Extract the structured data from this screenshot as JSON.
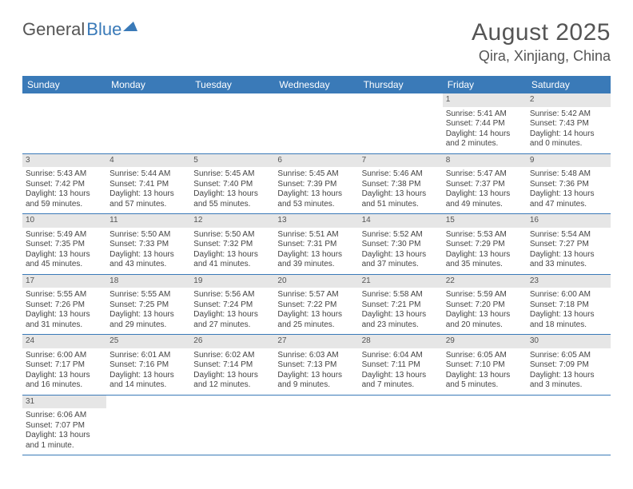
{
  "brand": {
    "part1": "General",
    "part2": "Blue"
  },
  "title": "August 2025",
  "location": "Qira, Xinjiang, China",
  "colors": {
    "header_bg": "#3a7ab8",
    "header_text": "#ffffff",
    "daynum_bg": "#e6e6e6",
    "rule": "#3a7ab8",
    "text": "#444444",
    "title_text": "#555555"
  },
  "dayHeaders": [
    "Sunday",
    "Monday",
    "Tuesday",
    "Wednesday",
    "Thursday",
    "Friday",
    "Saturday"
  ],
  "weeks": [
    [
      null,
      null,
      null,
      null,
      null,
      {
        "n": "1",
        "sr": "Sunrise: 5:41 AM",
        "ss": "Sunset: 7:44 PM",
        "dl": "Daylight: 14 hours and 2 minutes."
      },
      {
        "n": "2",
        "sr": "Sunrise: 5:42 AM",
        "ss": "Sunset: 7:43 PM",
        "dl": "Daylight: 14 hours and 0 minutes."
      }
    ],
    [
      {
        "n": "3",
        "sr": "Sunrise: 5:43 AM",
        "ss": "Sunset: 7:42 PM",
        "dl": "Daylight: 13 hours and 59 minutes."
      },
      {
        "n": "4",
        "sr": "Sunrise: 5:44 AM",
        "ss": "Sunset: 7:41 PM",
        "dl": "Daylight: 13 hours and 57 minutes."
      },
      {
        "n": "5",
        "sr": "Sunrise: 5:45 AM",
        "ss": "Sunset: 7:40 PM",
        "dl": "Daylight: 13 hours and 55 minutes."
      },
      {
        "n": "6",
        "sr": "Sunrise: 5:45 AM",
        "ss": "Sunset: 7:39 PM",
        "dl": "Daylight: 13 hours and 53 minutes."
      },
      {
        "n": "7",
        "sr": "Sunrise: 5:46 AM",
        "ss": "Sunset: 7:38 PM",
        "dl": "Daylight: 13 hours and 51 minutes."
      },
      {
        "n": "8",
        "sr": "Sunrise: 5:47 AM",
        "ss": "Sunset: 7:37 PM",
        "dl": "Daylight: 13 hours and 49 minutes."
      },
      {
        "n": "9",
        "sr": "Sunrise: 5:48 AM",
        "ss": "Sunset: 7:36 PM",
        "dl": "Daylight: 13 hours and 47 minutes."
      }
    ],
    [
      {
        "n": "10",
        "sr": "Sunrise: 5:49 AM",
        "ss": "Sunset: 7:35 PM",
        "dl": "Daylight: 13 hours and 45 minutes."
      },
      {
        "n": "11",
        "sr": "Sunrise: 5:50 AM",
        "ss": "Sunset: 7:33 PM",
        "dl": "Daylight: 13 hours and 43 minutes."
      },
      {
        "n": "12",
        "sr": "Sunrise: 5:50 AM",
        "ss": "Sunset: 7:32 PM",
        "dl": "Daylight: 13 hours and 41 minutes."
      },
      {
        "n": "13",
        "sr": "Sunrise: 5:51 AM",
        "ss": "Sunset: 7:31 PM",
        "dl": "Daylight: 13 hours and 39 minutes."
      },
      {
        "n": "14",
        "sr": "Sunrise: 5:52 AM",
        "ss": "Sunset: 7:30 PM",
        "dl": "Daylight: 13 hours and 37 minutes."
      },
      {
        "n": "15",
        "sr": "Sunrise: 5:53 AM",
        "ss": "Sunset: 7:29 PM",
        "dl": "Daylight: 13 hours and 35 minutes."
      },
      {
        "n": "16",
        "sr": "Sunrise: 5:54 AM",
        "ss": "Sunset: 7:27 PM",
        "dl": "Daylight: 13 hours and 33 minutes."
      }
    ],
    [
      {
        "n": "17",
        "sr": "Sunrise: 5:55 AM",
        "ss": "Sunset: 7:26 PM",
        "dl": "Daylight: 13 hours and 31 minutes."
      },
      {
        "n": "18",
        "sr": "Sunrise: 5:55 AM",
        "ss": "Sunset: 7:25 PM",
        "dl": "Daylight: 13 hours and 29 minutes."
      },
      {
        "n": "19",
        "sr": "Sunrise: 5:56 AM",
        "ss": "Sunset: 7:24 PM",
        "dl": "Daylight: 13 hours and 27 minutes."
      },
      {
        "n": "20",
        "sr": "Sunrise: 5:57 AM",
        "ss": "Sunset: 7:22 PM",
        "dl": "Daylight: 13 hours and 25 minutes."
      },
      {
        "n": "21",
        "sr": "Sunrise: 5:58 AM",
        "ss": "Sunset: 7:21 PM",
        "dl": "Daylight: 13 hours and 23 minutes."
      },
      {
        "n": "22",
        "sr": "Sunrise: 5:59 AM",
        "ss": "Sunset: 7:20 PM",
        "dl": "Daylight: 13 hours and 20 minutes."
      },
      {
        "n": "23",
        "sr": "Sunrise: 6:00 AM",
        "ss": "Sunset: 7:18 PM",
        "dl": "Daylight: 13 hours and 18 minutes."
      }
    ],
    [
      {
        "n": "24",
        "sr": "Sunrise: 6:00 AM",
        "ss": "Sunset: 7:17 PM",
        "dl": "Daylight: 13 hours and 16 minutes."
      },
      {
        "n": "25",
        "sr": "Sunrise: 6:01 AM",
        "ss": "Sunset: 7:16 PM",
        "dl": "Daylight: 13 hours and 14 minutes."
      },
      {
        "n": "26",
        "sr": "Sunrise: 6:02 AM",
        "ss": "Sunset: 7:14 PM",
        "dl": "Daylight: 13 hours and 12 minutes."
      },
      {
        "n": "27",
        "sr": "Sunrise: 6:03 AM",
        "ss": "Sunset: 7:13 PM",
        "dl": "Daylight: 13 hours and 9 minutes."
      },
      {
        "n": "28",
        "sr": "Sunrise: 6:04 AM",
        "ss": "Sunset: 7:11 PM",
        "dl": "Daylight: 13 hours and 7 minutes."
      },
      {
        "n": "29",
        "sr": "Sunrise: 6:05 AM",
        "ss": "Sunset: 7:10 PM",
        "dl": "Daylight: 13 hours and 5 minutes."
      },
      {
        "n": "30",
        "sr": "Sunrise: 6:05 AM",
        "ss": "Sunset: 7:09 PM",
        "dl": "Daylight: 13 hours and 3 minutes."
      }
    ],
    [
      {
        "n": "31",
        "sr": "Sunrise: 6:06 AM",
        "ss": "Sunset: 7:07 PM",
        "dl": "Daylight: 13 hours and 1 minute."
      },
      null,
      null,
      null,
      null,
      null,
      null
    ]
  ]
}
